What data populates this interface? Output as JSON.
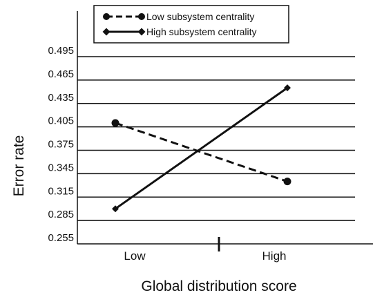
{
  "chart_data": {
    "type": "line",
    "categories": [
      "Low",
      "High"
    ],
    "xlabel": "Global distribution score",
    "ylabel": "Error rate",
    "ylim": [
      0.255,
      0.495
    ],
    "yticks": [
      "0.495",
      "0.465",
      "0.435",
      "0.405",
      "0.375",
      "0.345",
      "0.315",
      "0.285",
      "0.255"
    ],
    "grid": true,
    "legend": "top-left",
    "series": [
      {
        "name": "Low subsystem centrality",
        "values": [
          0.41,
          0.335
        ],
        "style": "dashed",
        "marker": "circle",
        "color": "#111111"
      },
      {
        "name": "High subsystem centrality",
        "values": [
          0.3,
          0.455
        ],
        "style": "solid",
        "marker": "diamond",
        "color": "#111111"
      }
    ]
  }
}
